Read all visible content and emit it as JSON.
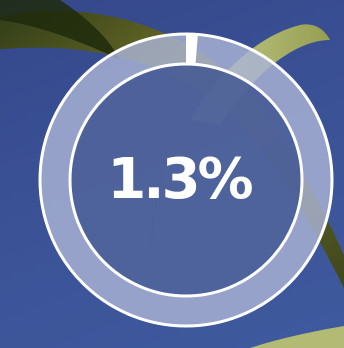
{
  "stat": {
    "percent_value": 1.3,
    "percent_label": "1.3%"
  },
  "background": {
    "description_icon": "grass-blade-photo",
    "sky_color": "#3b5196",
    "blade_color": "#6b6a1e",
    "blade_light_color": "#c9cc7a"
  },
  "ring": {
    "track_color": "#a4aed0",
    "stroke_color": "#ffffff"
  }
}
